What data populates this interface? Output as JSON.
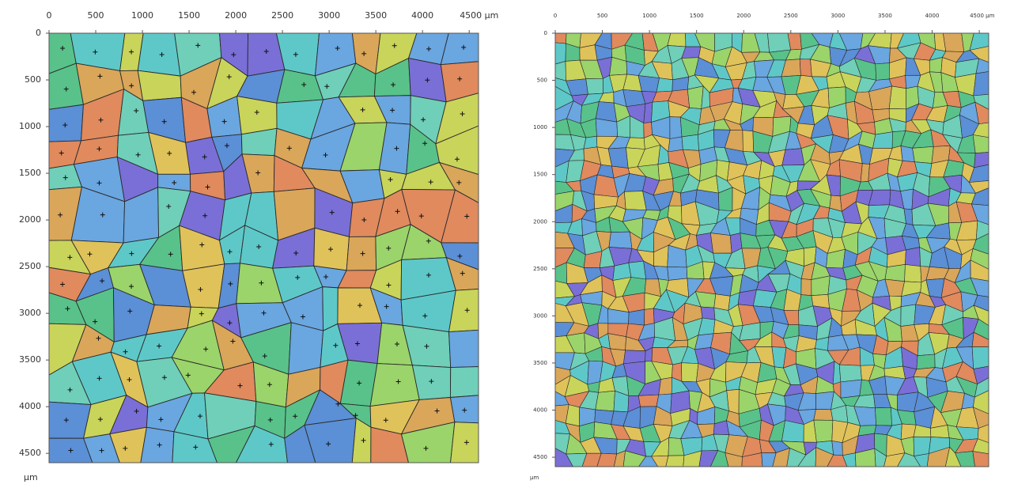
{
  "chart_data": [
    {
      "type": "image",
      "xlim": [
        0,
        4600
      ],
      "ylim": [
        0,
        4600
      ],
      "xticks": [
        0,
        500,
        1000,
        1500,
        2000,
        2500,
        3000,
        3500,
        4000,
        {
          "value": 4500,
          "label": "4500 µm"
        }
      ],
      "yticks": [
        0,
        500,
        1000,
        1500,
        2000,
        2500,
        3000,
        3500,
        4000,
        4500
      ],
      "y_unit": "µm"
    },
    {
      "type": "image",
      "xlim": [
        0,
        4600
      ],
      "ylim": [
        0,
        4600
      ],
      "xticks": [
        0,
        500,
        1000,
        1500,
        2000,
        2500,
        3000,
        3500,
        4000,
        {
          "value": 4500,
          "label": "4500 µm"
        }
      ],
      "yticks": [
        0,
        500,
        1000,
        1500,
        2000,
        2500,
        3000,
        3500,
        4000,
        4500
      ],
      "y_unit": "µm"
    }
  ]
}
